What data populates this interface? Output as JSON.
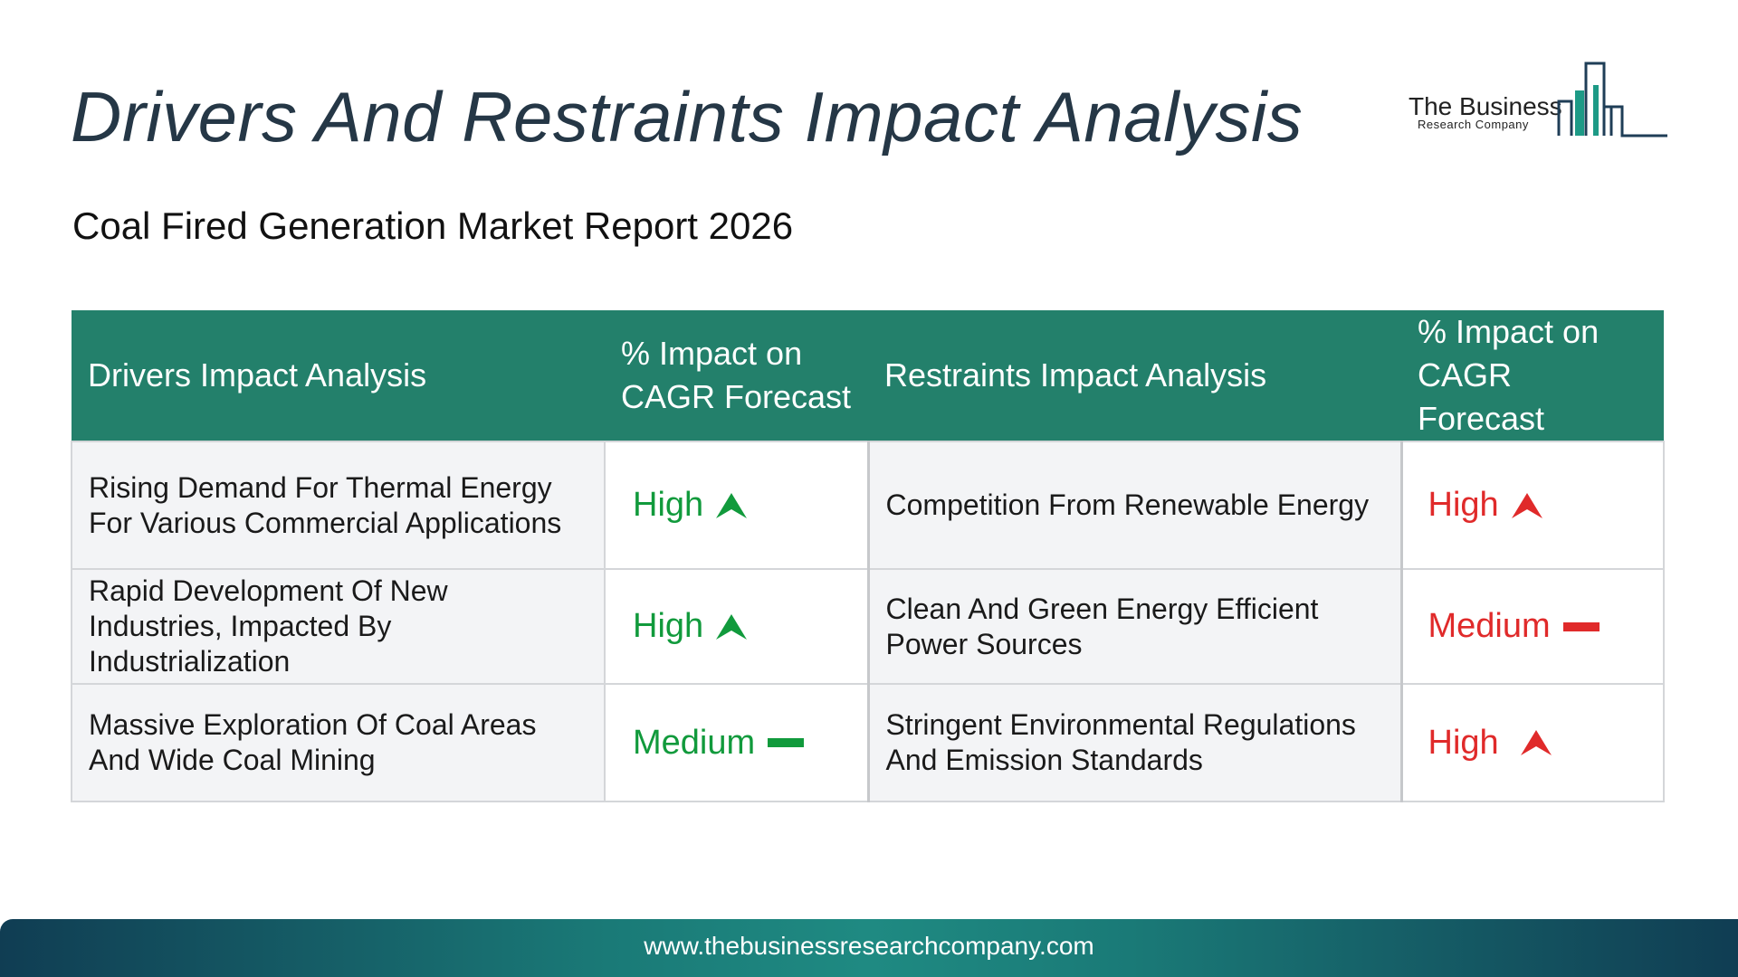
{
  "page": {
    "title": "Drivers And Restraints Impact Analysis",
    "subtitle": "Coal Fired Generation Market Report 2026"
  },
  "logo": {
    "name": "The Business",
    "tagline": "Research Company"
  },
  "table": {
    "headers": {
      "drivers": "Drivers Impact Analysis",
      "drivers_impact": "% Impact on CAGR Forecast",
      "restraints": "Restraints Impact Analysis",
      "restraints_impact": "% Impact on CAGR Forecast"
    },
    "rows": [
      {
        "driver": "Rising Demand For Thermal Energy For Various Commercial Applications",
        "driver_impact": "High",
        "driver_icon": "arrow-up-icon",
        "restraint": "Competition From Renewable Energy",
        "restraint_impact": "High",
        "restraint_icon": "arrow-up-icon"
      },
      {
        "driver": "Rapid Development Of New Industries, Impacted By Industrialization",
        "driver_impact": "High",
        "driver_icon": "arrow-up-icon",
        "restraint": "Clean And Green Energy Efficient Power Sources",
        "restraint_impact": "Medium",
        "restraint_icon": "dash-icon"
      },
      {
        "driver": "Massive Exploration Of Coal Areas And Wide Coal Mining",
        "driver_impact": "Medium",
        "driver_icon": "dash-icon",
        "restraint": "Stringent Environmental Regulations And Emission Standards",
        "restraint_impact": "High",
        "restraint_icon": "arrow-up-icon"
      }
    ]
  },
  "footer": {
    "url": "www.thebusinessresearchcompany.com"
  },
  "colors": {
    "header_bg": "#23806b",
    "title": "#253746",
    "driver_impact": "#119a3c",
    "restraint_impact": "#e02a2a"
  }
}
